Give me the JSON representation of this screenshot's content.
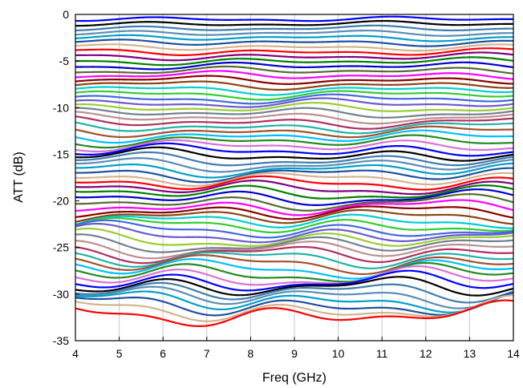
{
  "chart_data": {
    "type": "line",
    "title": "",
    "xlabel": "Freq (GHz)",
    "ylabel": "ATT (dB)",
    "xlim": [
      4,
      14
    ],
    "ylim": [
      -35,
      0
    ],
    "xticks": [
      "4",
      "5",
      "6",
      "7",
      "8",
      "9",
      "10",
      "11",
      "12",
      "13",
      "14"
    ],
    "yticks": [
      "0",
      "-5",
      "-10",
      "-15",
      "-20",
      "-25",
      "-30",
      "-35"
    ],
    "grid": "vertical",
    "legend": "none",
    "series_count": 64,
    "series_att_step_db": 0.5,
    "series_start_att_db": -0.5,
    "x": [
      4,
      5,
      6,
      7,
      8,
      9,
      10,
      11,
      12,
      13,
      14
    ],
    "colors": [
      "#0000FF",
      "#000000",
      "#3C7DAF",
      "#5A8CB4",
      "#00A0C8",
      "#1E50A0",
      "#D2B48C",
      "#FF0000",
      "#800080",
      "#008000",
      "#0000CD",
      "#556B2F",
      "#FF00FF",
      "#8B0000",
      "#8B4513",
      "#00CED1",
      "#32CD32",
      "#4169E1",
      "#6A5ACD",
      "#9ACD32",
      "#708090",
      "#BC8F8F",
      "#B03060",
      "#20B2AA",
      "#A0522D",
      "#00BFFF",
      "#228B22",
      "#DA70D6"
    ]
  }
}
